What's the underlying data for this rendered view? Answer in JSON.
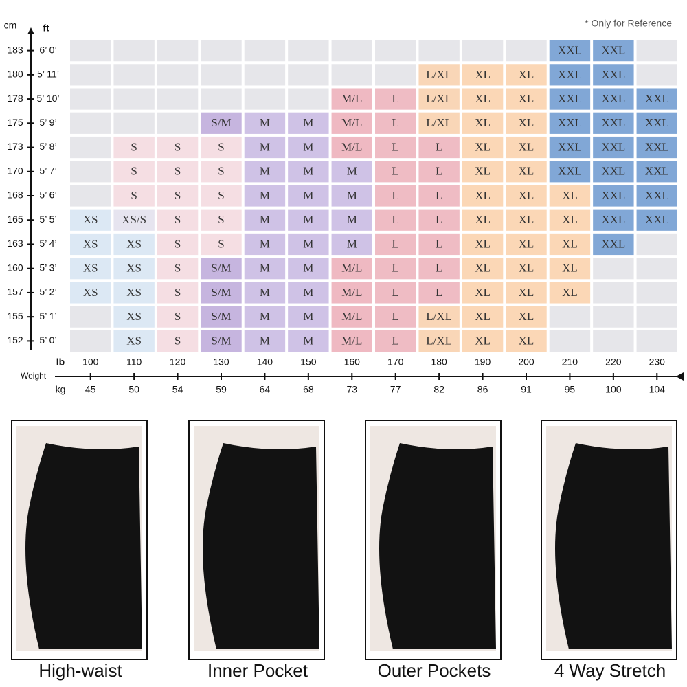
{
  "header": {
    "cm_label": "cm",
    "ft_label": "ft",
    "note": "* Only for Reference"
  },
  "axis": {
    "lb_label": "lb",
    "kg_label": "kg",
    "weight_label": "Weight"
  },
  "table": {
    "columns_lb": [
      "100",
      "110",
      "120",
      "130",
      "140",
      "150",
      "160",
      "170",
      "180",
      "190",
      "200",
      "210",
      "220",
      "230"
    ],
    "columns_kg": [
      "45",
      "50",
      "54",
      "59",
      "64",
      "68",
      "73",
      "77",
      "82",
      "86",
      "91",
      "95",
      "100",
      "104"
    ],
    "rows": [
      {
        "cm": "183",
        "ft": "6’ 0’",
        "cells": [
          null,
          null,
          null,
          null,
          null,
          null,
          null,
          null,
          null,
          null,
          null,
          "XXL",
          "XXL",
          null
        ]
      },
      {
        "cm": "180",
        "ft": "5’ 11’",
        "cells": [
          null,
          null,
          null,
          null,
          null,
          null,
          null,
          null,
          "L/XL",
          "XL",
          "XL",
          "XXL",
          "XXL",
          null
        ]
      },
      {
        "cm": "178",
        "ft": "5’ 10’",
        "cells": [
          null,
          null,
          null,
          null,
          null,
          null,
          "M/L",
          "L",
          "L/XL",
          "XL",
          "XL",
          "XXL",
          "XXL",
          "XXL"
        ]
      },
      {
        "cm": "175",
        "ft": "5’ 9’",
        "cells": [
          null,
          null,
          null,
          "S/M",
          "M",
          "M",
          "M/L",
          "L",
          "L/XL",
          "XL",
          "XL",
          "XXL",
          "XXL",
          "XXL"
        ]
      },
      {
        "cm": "173",
        "ft": "5’ 8’",
        "cells": [
          null,
          "S",
          "S",
          "S",
          "M",
          "M",
          "M/L",
          "L",
          "L",
          "XL",
          "XL",
          "XXL",
          "XXL",
          "XXL"
        ]
      },
      {
        "cm": "170",
        "ft": "5’ 7’",
        "cells": [
          null,
          "S",
          "S",
          "S",
          "M",
          "M",
          "M",
          "L",
          "L",
          "XL",
          "XL",
          "XXL",
          "XXL",
          "XXL"
        ]
      },
      {
        "cm": "168",
        "ft": "5’ 6’",
        "cells": [
          null,
          "S",
          "S",
          "S",
          "M",
          "M",
          "M",
          "L",
          "L",
          "XL",
          "XL",
          "XL",
          "XXL",
          "XXL"
        ]
      },
      {
        "cm": "165",
        "ft": "5’ 5’",
        "cells": [
          "XS",
          "XS/S",
          "S",
          "S",
          "M",
          "M",
          "M",
          "L",
          "L",
          "XL",
          "XL",
          "XL",
          "XXL",
          "XXL"
        ]
      },
      {
        "cm": "163",
        "ft": "5’ 4’",
        "cells": [
          "XS",
          "XS",
          "S",
          "S",
          "M",
          "M",
          "M",
          "L",
          "L",
          "XL",
          "XL",
          "XL",
          "XXL",
          null
        ]
      },
      {
        "cm": "160",
        "ft": "5’ 3’",
        "cells": [
          "XS",
          "XS",
          "S",
          "S/M",
          "M",
          "M",
          "M/L",
          "L",
          "L",
          "XL",
          "XL",
          "XL",
          null,
          null
        ]
      },
      {
        "cm": "157",
        "ft": "5’ 2’",
        "cells": [
          "XS",
          "XS",
          "S",
          "S/M",
          "M",
          "M",
          "M/L",
          "L",
          "L",
          "XL",
          "XL",
          "XL",
          null,
          null
        ]
      },
      {
        "cm": "155",
        "ft": "5’ 1’",
        "cells": [
          null,
          "XS",
          "S",
          "S/M",
          "M",
          "M",
          "M/L",
          "L",
          "L/XL",
          "XL",
          "XL",
          null,
          null,
          null
        ]
      },
      {
        "cm": "152",
        "ft": "5’ 0’",
        "cells": [
          null,
          "XS",
          "S",
          "S/M",
          "M",
          "M",
          "M/L",
          "L",
          "L/XL",
          "XL",
          "XL",
          null,
          null,
          null
        ]
      }
    ]
  },
  "palette": {
    "XS": "#dce8f4",
    "XS/S": "#e6e4ef",
    "S": "#f5dee3",
    "S/M": "#c6b5df",
    "M": "#cfc2e6",
    "M/L": "#efb9c2",
    "L": "#efbcc4",
    "L/XL": "#f9d6b7",
    "XL": "#fbd7b6",
    "XXL": "#81a7d6"
  },
  "features": [
    "High-waist",
    "Inner Pocket",
    "Outer Pockets",
    "4 Way Stretch"
  ]
}
